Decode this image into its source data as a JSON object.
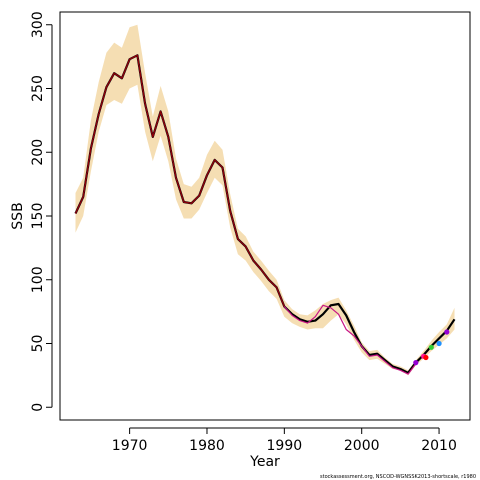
{
  "chart_data": {
    "type": "line",
    "xlabel": "Year",
    "ylabel": "SSB",
    "xlim": [
      1961,
      2014
    ],
    "ylim": [
      -10,
      310
    ],
    "x_ticks": [
      1970,
      1980,
      1990,
      2000,
      2010
    ],
    "y_ticks": [
      0,
      50,
      100,
      150,
      200,
      250,
      300
    ],
    "grid": false,
    "legend": "none",
    "credit": "stockassessment.org, NSCOD-WGNSSK2013-shortscale, r1980",
    "colors": {
      "band": "#f5deb3",
      "main_line": "#000000",
      "retro_line": "#c71585",
      "retro_line_dark": "#8b0000",
      "point_colors": [
        "#9400d3",
        "#ff1493",
        "#ff0000",
        "#32cd32",
        "#1e90ff"
      ]
    },
    "band": {
      "x": [
        1963,
        1964,
        1965,
        1966,
        1967,
        1968,
        1969,
        1970,
        1971,
        1972,
        1973,
        1974,
        1975,
        1976,
        1977,
        1978,
        1979,
        1980,
        1981,
        1982,
        1983,
        1984,
        1985,
        1986,
        1987,
        1988,
        1989,
        1990,
        1991,
        1992,
        1993,
        1994,
        1995,
        1996,
        1997,
        1998,
        1999,
        2000,
        2001,
        2002,
        2003,
        2004,
        2005,
        2006,
        2007,
        2008,
        2009,
        2010,
        2011,
        2012
      ],
      "upper": [
        168,
        180,
        225,
        255,
        278,
        286,
        282,
        298,
        300,
        262,
        228,
        252,
        232,
        195,
        175,
        173,
        180,
        198,
        209,
        202,
        167,
        140,
        134,
        122,
        115,
        107,
        100,
        84,
        77,
        73,
        72,
        76,
        81,
        84,
        86,
        76,
        64,
        51,
        44,
        45,
        39,
        34,
        32,
        29,
        37,
        44,
        52,
        59,
        65,
        78
      ],
      "lower": [
        137,
        150,
        185,
        216,
        237,
        241,
        238,
        250,
        253,
        216,
        193,
        213,
        193,
        163,
        148,
        148,
        155,
        168,
        180,
        174,
        141,
        120,
        115,
        106,
        99,
        91,
        85,
        71,
        66,
        63,
        61,
        62,
        62,
        68,
        73,
        65,
        53,
        43,
        37,
        38,
        34,
        30,
        29,
        25,
        33,
        38,
        44,
        49,
        54,
        61
      ]
    },
    "series": [
      {
        "x": [
          1963,
          1964,
          1965,
          1966,
          1967,
          1968,
          1969,
          1970,
          1971,
          1972,
          1973,
          1974,
          1975,
          1976,
          1977,
          1978,
          1979,
          1980,
          1981,
          1982,
          1983,
          1984,
          1985,
          1986,
          1987,
          1988,
          1989,
          1990,
          1991,
          1992,
          1993,
          1994,
          1995,
          1996,
          1997,
          1998,
          1999,
          2000,
          2001,
          2002,
          2003,
          2004,
          2005,
          2006,
          2007,
          2008,
          2009,
          2010,
          2011,
          2012
        ],
        "values": [
          152,
          165,
          203,
          230,
          251,
          262,
          258,
          273,
          276,
          238,
          212,
          232,
          212,
          180,
          161,
          160,
          166,
          182,
          194,
          188,
          154,
          132,
          126,
          115,
          108,
          100,
          94,
          79,
          73,
          69,
          67,
          68,
          73,
          80,
          81,
          72,
          59,
          48,
          41,
          42,
          37,
          32,
          30,
          27,
          35,
          41,
          48,
          54,
          60,
          69
        ]
      },
      {
        "x": [
          1963,
          1964,
          1965,
          1966,
          1967,
          1968,
          1969,
          1970,
          1971,
          1972,
          1973,
          1974,
          1975,
          1976,
          1977,
          1978,
          1979,
          1980,
          1981,
          1982,
          1983,
          1984,
          1985,
          1986,
          1987,
          1988,
          1989,
          1990,
          1991,
          1992,
          1993,
          1994,
          1995,
          1996,
          1997,
          1998,
          1999,
          2000,
          2001,
          2002,
          2003,
          2004,
          2005,
          2006,
          2007
        ],
        "values": [
          152,
          165,
          203,
          230,
          251,
          262,
          258,
          273,
          276,
          238,
          212,
          232,
          212,
          180,
          161,
          160,
          166,
          182,
          194,
          188,
          154,
          132,
          126,
          115,
          108,
          100,
          94,
          79,
          72,
          68,
          66,
          71,
          80,
          78,
          73,
          61,
          56,
          48,
          40,
          41,
          36,
          31,
          29,
          26,
          34
        ]
      },
      {
        "x": [
          1963,
          1970,
          1980,
          1990,
          2000,
          2008
        ],
        "values": [
          152,
          273,
          182,
          79,
          48,
          40
        ]
      }
    ],
    "points": [
      {
        "x": 2007,
        "y": 35
      },
      {
        "x": 2008,
        "y": 40
      },
      {
        "x": 2008.3,
        "y": 39
      },
      {
        "x": 2009,
        "y": 47
      },
      {
        "x": 2010,
        "y": 50
      },
      {
        "x": 2011,
        "y": 59
      }
    ]
  }
}
